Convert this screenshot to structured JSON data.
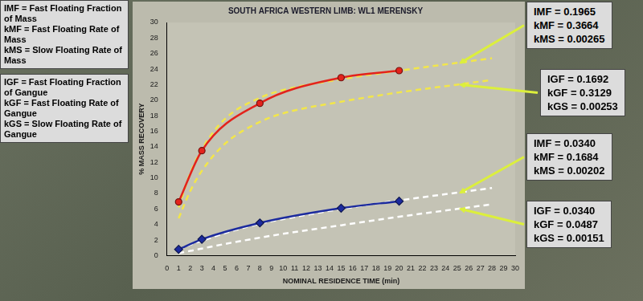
{
  "chart_data": {
    "type": "line",
    "title": "SOUTH AFRICA WESTERN LIMB: WL1 MERENSKY",
    "x_label": "NOMINAL RESIDENCE TIME (min)",
    "y_label": "% MASS RECOVERY",
    "xlim": [
      0,
      30
    ],
    "xticks": [
      0,
      1,
      2,
      3,
      4,
      5,
      6,
      7,
      8,
      9,
      10,
      11,
      12,
      13,
      14,
      15,
      16,
      17,
      18,
      19,
      20,
      21,
      22,
      23,
      24,
      25,
      26,
      27,
      28,
      29,
      30
    ],
    "ylim": [
      0,
      30
    ],
    "yticks": [
      0,
      2,
      4,
      6,
      8,
      10,
      12,
      14,
      16,
      18,
      20,
      22,
      24,
      26,
      28,
      30
    ],
    "grid": false,
    "series": [
      {
        "x": [
          1,
          2,
          3,
          5,
          8,
          10,
          15,
          20,
          25,
          28
        ],
        "values": [
          6.2,
          10.6,
          13.7,
          17.6,
          20.3,
          21.3,
          22.7,
          23.8,
          24.8,
          25.4
        ],
        "color": "#f2e64a",
        "line_style": "dashed",
        "marker": "none"
      },
      {
        "x": [
          1,
          2,
          3,
          5,
          8,
          10,
          15,
          20,
          25,
          28
        ],
        "values": [
          4.8,
          8.3,
          10.9,
          14.4,
          17.2,
          18.3,
          19.8,
          21.0,
          22.0,
          22.6
        ],
        "color": "#f2e64a",
        "line_style": "dashed",
        "marker": "none"
      },
      {
        "x": [
          1,
          2,
          3,
          5,
          8,
          10,
          15,
          20,
          25,
          28
        ],
        "values": [
          0.7,
          1.4,
          1.9,
          2.9,
          4.1,
          4.7,
          6.0,
          7.1,
          8.1,
          8.7
        ],
        "color": "#ffffff",
        "line_style": "dashed",
        "marker": "none"
      },
      {
        "x": [
          1,
          2,
          3,
          5,
          8,
          10,
          15,
          20,
          25,
          28
        ],
        "values": [
          0.3,
          0.6,
          0.9,
          1.5,
          2.3,
          2.8,
          3.9,
          5.0,
          6.0,
          6.6
        ],
        "color": "#ffffff",
        "line_style": "dashed",
        "marker": "none"
      },
      {
        "x": [
          1,
          3,
          8,
          15,
          20
        ],
        "values": [
          6.9,
          13.5,
          19.6,
          22.9,
          23.8
        ],
        "color": "#e3231c",
        "line_style": "solid",
        "marker": "circle"
      },
      {
        "x": [
          1,
          3,
          8,
          15,
          20
        ],
        "values": [
          0.8,
          2.1,
          4.2,
          6.1,
          7.0
        ],
        "color": "#1c2b9e",
        "line_style": "solid",
        "marker": "diamond"
      }
    ],
    "annotations": [
      {
        "lines": [
          "IMF = Fast Floating Fraction of Mass",
          "kMF = Fast Floating Rate of Mass",
          "kMS = Slow Floating Rate of Mass"
        ]
      },
      {
        "lines": [
          "IGF = Fast Floating Fraction of Gangue",
          "kGF = Fast Floating Rate of Gangue",
          "kGS = Slow Floating Rate of Gangue"
        ]
      },
      {
        "lines": [
          "IMF = 0.1965",
          "kMF = 0.3664",
          "kMS = 0.00265"
        ]
      },
      {
        "lines": [
          "IGF = 0.1692",
          "kGF = 0.3129",
          "kGS = 0.00253"
        ]
      },
      {
        "lines": [
          "IMF = 0.0340",
          "kMF = 0.1684",
          "kMS = 0.00202"
        ]
      },
      {
        "lines": [
          "IGF = 0.0340",
          "kGF = 0.0487",
          "kGS = 0.00151"
        ]
      }
    ]
  }
}
